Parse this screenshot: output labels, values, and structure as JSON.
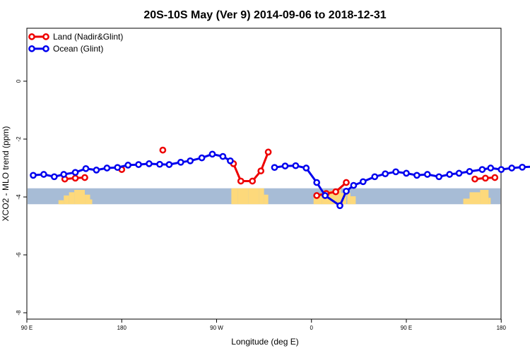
{
  "chart_data": {
    "type": "line",
    "title": "20S-10S May (Ver 9)   2014-09-06 to 2018-12-31",
    "xlabel": "Longitude (deg E)",
    "ylabel": "XCO2 - MLO trend (ppm)",
    "x_scale": "longitude starting at 90 E, increasing eastward",
    "xlim": [
      90,
      450
    ],
    "ylim": [
      -8.1,
      1.8
    ],
    "x_ticks": [
      {
        "value": 90,
        "label": "90 E"
      },
      {
        "value": 180,
        "label": "180"
      },
      {
        "value": 270,
        "label": "90 W"
      },
      {
        "value": 360,
        "label": "0"
      },
      {
        "value": 450,
        "label": "90 E"
      },
      {
        "value": 540,
        "label": "180"
      }
    ],
    "y_ticks": [
      {
        "value": 0,
        "label": "0"
      },
      {
        "value": -2,
        "label": "-2"
      },
      {
        "value": -4,
        "label": "-4"
      },
      {
        "value": -6,
        "label": "-6"
      },
      {
        "value": -8,
        "label": "-8"
      }
    ],
    "grid": false,
    "legend_position": "top-left",
    "background_band": {
      "y_range": [
        -4.25,
        -3.7
      ],
      "ocean_color": "#a7bcd6",
      "land_color": "#fdd97b",
      "land_x_ranges": [
        [
          120,
          125,
          0.25
        ],
        [
          125,
          130,
          0.55
        ],
        [
          130,
          135,
          0.75
        ],
        [
          135,
          145,
          0.9
        ],
        [
          145,
          150,
          0.6
        ],
        [
          150,
          152,
          0.3
        ],
        [
          284,
          290,
          1.0
        ],
        [
          290,
          300,
          1.0
        ],
        [
          300,
          310,
          1.0
        ],
        [
          310,
          315,
          1.0
        ],
        [
          315,
          319,
          0.6
        ],
        [
          362,
          370,
          0.5
        ],
        [
          370,
          380,
          0.85
        ],
        [
          380,
          388,
          0.95
        ],
        [
          388,
          393,
          0.7
        ],
        [
          394,
          397,
          0.7
        ],
        [
          397,
          402,
          0.5
        ],
        [
          504,
          510,
          0.35
        ],
        [
          510,
          520,
          0.75
        ],
        [
          520,
          528,
          0.9
        ],
        [
          528,
          530,
          0.4
        ]
      ]
    },
    "series": [
      {
        "name": "Land (Nadir&Glint)",
        "color": "#ee0000",
        "segments": [
          {
            "x": [
              126,
              136,
              145
            ],
            "y": [
              -3.38,
              -3.35,
              -3.33
            ]
          },
          {
            "x": [
              180
            ],
            "y": [
              -3.05
            ]
          },
          {
            "x": [
              219
            ],
            "y": [
              -2.38
            ]
          },
          {
            "x": [
              286,
              293,
              304,
              312,
              319
            ],
            "y": [
              -2.85,
              -3.45,
              -3.45,
              -3.1,
              -2.45
            ]
          },
          {
            "x": [
              365,
              374,
              383,
              393
            ],
            "y": [
              -3.95,
              -3.88,
              -3.82,
              -3.5
            ]
          },
          {
            "x": [
              515,
              525,
              534
            ],
            "y": [
              -3.38,
              -3.35,
              -3.33
            ]
          }
        ]
      },
      {
        "name": "Ocean (Glint)",
        "color": "#0000ee",
        "segments": [
          {
            "x": [
              96,
              106,
              116,
              125,
              136,
              146,
              156,
              166,
              176,
              186,
              196,
              206,
              216,
              225,
              236,
              245,
              256,
              266,
              276,
              283
            ],
            "y": [
              -3.25,
              -3.22,
              -3.3,
              -3.22,
              -3.15,
              -3.02,
              -3.07,
              -3.0,
              -2.98,
              -2.9,
              -2.88,
              -2.85,
              -2.87,
              -2.88,
              -2.8,
              -2.75,
              -2.65,
              -2.52,
              -2.6,
              -2.75
            ]
          },
          {
            "x": [
              325,
              335,
              345,
              355,
              365,
              373,
              387,
              393,
              400,
              409,
              420,
              430,
              440,
              450,
              460,
              470,
              481,
              491,
              500,
              510,
              522,
              530,
              540,
              550,
              560,
              571
            ],
            "y": [
              -2.98,
              -2.93,
              -2.92,
              -3.0,
              -3.5,
              -3.95,
              -4.3,
              -3.8,
              -3.6,
              -3.47,
              -3.3,
              -3.2,
              -3.13,
              -3.18,
              -3.25,
              -3.22,
              -3.3,
              -3.22,
              -3.18,
              -3.12,
              -3.05,
              -3.0,
              -3.05,
              -3.0,
              -2.97,
              -2.95
            ]
          }
        ]
      }
    ]
  }
}
